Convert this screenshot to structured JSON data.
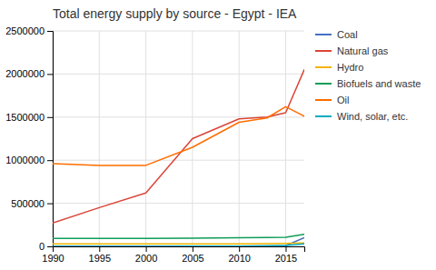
{
  "chart_data": {
    "type": "line",
    "title": "Total energy supply by source - Egypt - IEA",
    "x": [
      1990,
      1995,
      2000,
      2005,
      2010,
      2013,
      2015,
      2017
    ],
    "series": [
      {
        "name": "Coal",
        "color": "#4472c4",
        "values": [
          1000,
          1000,
          1000,
          2000,
          3000,
          5000,
          8000,
          100000
        ]
      },
      {
        "name": "Natural gas",
        "color": "#db4437",
        "values": [
          270000,
          450000,
          620000,
          1250000,
          1480000,
          1500000,
          1550000,
          2050000
        ]
      },
      {
        "name": "Hydro",
        "color": "#f4b400",
        "values": [
          28000,
          28000,
          28000,
          28000,
          30000,
          32000,
          35000,
          40000
        ]
      },
      {
        "name": "Biofuels and waste",
        "color": "#0f9d58",
        "values": [
          92000,
          92000,
          92000,
          95000,
          100000,
          103000,
          106000,
          140000
        ]
      },
      {
        "name": "Oil",
        "color": "#ff6d00",
        "values": [
          960000,
          940000,
          940000,
          1150000,
          1440000,
          1490000,
          1620000,
          1510000
        ]
      },
      {
        "name": "Wind, solar, etc.",
        "color": "#00acc1",
        "values": [
          500,
          500,
          1000,
          1500,
          3000,
          5000,
          10000,
          30000
        ]
      }
    ],
    "xlim": [
      1990,
      2017
    ],
    "xticks": [
      1990,
      1995,
      2000,
      2005,
      2010,
      2015
    ],
    "ylim": [
      0,
      2500000
    ],
    "yticks": [
      0,
      500000,
      1000000,
      1500000,
      2000000,
      2500000
    ],
    "grid": true,
    "legend": "right"
  }
}
